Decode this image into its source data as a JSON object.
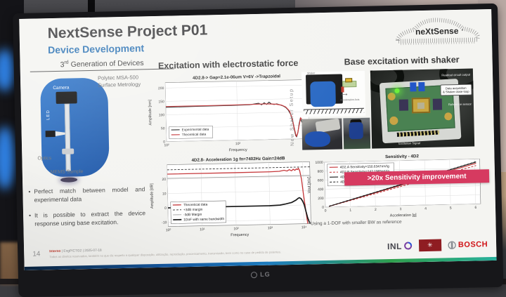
{
  "monitor": {
    "brand": "LG"
  },
  "colors": {
    "accent_blue": "#2e74b5",
    "device_blue": "#2b6fc4",
    "banner_pink": "#d63a60",
    "chart_red": "#c53538",
    "bosch_red": "#d01317",
    "uminho_red": "#8f1d22",
    "footer_gradient": [
      "#0a2440",
      "#1659a2",
      "#1e7fc2",
      "#2fa04e",
      "#28b09c"
    ]
  },
  "slide": {
    "title": "NextSense Project P01",
    "subtitle": "Device Development",
    "generation": {
      "num": "3",
      "sup": "rd",
      "rest": " Generation of Devices"
    },
    "logo_text": "neXtSense",
    "left": {
      "instrument": "Polytec MSA-500\nSurface Metrology",
      "labels": {
        "camera": "Camera",
        "led": "LED",
        "optics": "Optics",
        "sample": "MEMS Sample"
      },
      "bullets": [
        "Perfect match between model and experimental data",
        "It is possible to extract the device response using base excitation."
      ]
    },
    "center": {
      "heading": "Excitation with electrostatic force"
    },
    "right": {
      "heading": "Base excitation with shaker",
      "side_label": "New Shaker Setup",
      "photo_labels": {
        "shaker": "Shaker",
        "accel_axis": "Acceleration Axis",
        "readout": "Readout circuit output",
        "daq": "Data acquisition\n& Shaker close-loop",
        "ref_sensor": "Reference sensor",
        "excitation": "Excitation Signal"
      },
      "banner": ">20x Sensitivity improvement",
      "footnote": "*Using a 1-DOF with smaller BW as reference"
    },
    "footer": {
      "page": "14",
      "classification": "Interno",
      "meta": "| EngP/CTG2 | 2025-07-18",
      "disclaimer": "Todos os direitos reservados, também no que diz respeito a qualquer disposição, utilização, reprodução, processamento, transmissão, bem como no caso de pedido de patentes.",
      "logos": {
        "inl": "INL",
        "uminho_symbol": "✳",
        "bosch": "BOSCH"
      }
    }
  },
  "chart_data": [
    {
      "id": "freq-response",
      "type": "line",
      "title": "4D2.8-> Gap=2.1e-06um V=6V ->Trapzoidal",
      "xlabel": "Frequency",
      "ylabel": "Amplitude [nm]",
      "xscale": "log",
      "xlim": [
        100,
        10000
      ],
      "ylim": [
        0,
        220
      ],
      "xticks": [
        {
          "v": 100,
          "l": "10²"
        },
        {
          "v": 1000,
          "l": "10³"
        },
        {
          "v": 10000,
          "l": "10⁴"
        }
      ],
      "yticks": [
        {
          "v": 0,
          "l": "0"
        },
        {
          "v": 50,
          "l": "50"
        },
        {
          "v": 100,
          "l": "100"
        },
        {
          "v": 150,
          "l": "150"
        },
        {
          "v": 200,
          "l": "200"
        }
      ],
      "grid": true,
      "legend": {
        "pos": "bl"
      },
      "series": [
        {
          "name": "Experimental data",
          "color": "#222222",
          "lw": 1.1,
          "dash": false,
          "x": [
            100,
            300,
            800,
            1500,
            2000,
            2200,
            2400,
            2600,
            2800,
            3000,
            3300,
            3600,
            4000,
            4400,
            4800,
            5200,
            5600,
            6000,
            6300,
            6500,
            6700,
            7000,
            7300,
            7600,
            8000,
            8500,
            9000,
            10000
          ],
          "y": [
            128,
            129,
            130,
            131,
            136,
            130,
            137,
            131,
            139,
            133,
            130,
            132,
            128,
            124,
            118,
            108,
            92,
            60,
            30,
            12,
            8,
            25,
            55,
            75,
            62,
            45,
            38,
            33
          ]
        },
        {
          "name": "Theoretical data",
          "color": "#c53538",
          "lw": 1.2,
          "dash": false,
          "x": [
            100,
            500,
            1500,
            2500,
            3500,
            4200,
            4800,
            5400,
            5900,
            6300,
            6600,
            6900,
            7300,
            7700,
            8200,
            8800,
            9500,
            10000
          ],
          "y": [
            131,
            131,
            132,
            133,
            131,
            127,
            120,
            105,
            75,
            35,
            10,
            18,
            50,
            78,
            68,
            52,
            44,
            40
          ]
        }
      ]
    },
    {
      "id": "acceleration",
      "type": "line",
      "title": "4D2.8- Acceleration 1g fn=7402Hz Gain=24dB",
      "xlabel": "Frequency",
      "ylabel": "Amplitude [dB]",
      "xscale": "log",
      "xlim": [
        1,
        16000
      ],
      "ylim": [
        -13,
        30
      ],
      "xticks": [
        {
          "v": 1,
          "l": "10⁰"
        },
        {
          "v": 10,
          "l": "10¹"
        },
        {
          "v": 100,
          "l": "10²"
        },
        {
          "v": 1000,
          "l": "10³"
        },
        {
          "v": 10000,
          "l": "10⁴"
        }
      ],
      "yticks": [
        {
          "v": -10,
          "l": "-10"
        },
        {
          "v": 0,
          "l": "0"
        },
        {
          "v": 10,
          "l": "10"
        },
        {
          "v": 20,
          "l": "20"
        }
      ],
      "grid": true,
      "legend": {
        "pos": "bl"
      },
      "series": [
        {
          "name": "Theoretical data",
          "color": "#c53538",
          "lw": 1.3,
          "dash": false,
          "x": [
            1,
            100,
            1000,
            2000,
            2800,
            3400,
            4000,
            4600,
            5200,
            5800,
            6400,
            6900,
            7402,
            8000,
            9000,
            10000,
            11500,
            13000
          ],
          "y": [
            23.5,
            23.5,
            23.6,
            23.8,
            24.5,
            23.9,
            24.8,
            24.0,
            25.0,
            24.3,
            25.2,
            24.8,
            25.6,
            24.0,
            18,
            8,
            -4,
            -13
          ]
        },
        {
          "name": "+3dB margin",
          "color": "#333333",
          "lw": 0.9,
          "dash": true,
          "x": [
            1,
            16000
          ],
          "y": [
            26.5,
            26.5
          ]
        },
        {
          "name": "-3dB Margin",
          "color": "#9a9a9a",
          "lw": 0.8,
          "dash": false,
          "x": [
            1,
            16000
          ],
          "y": [
            20.5,
            20.5
          ]
        },
        {
          "name": "1DoF with same bandwidth",
          "color": "#1a1a1a",
          "lw": 1.7,
          "dash": false,
          "x": [
            1,
            1000,
            2000,
            3000,
            4500,
            6000,
            7000,
            7600,
            8500,
            9500,
            10500,
            11500,
            13000,
            15000
          ],
          "y": [
            0,
            0,
            0.3,
            1,
            2,
            3.5,
            4.8,
            5.2,
            4.5,
            2.5,
            0,
            -4,
            -9,
            -13
          ]
        }
      ]
    },
    {
      "id": "sensitivity",
      "type": "line",
      "title": "Sensitivity - 4D2",
      "xlabel": "Acceleration [g]",
      "ylabel": "Vout [mV]",
      "xscale": "linear",
      "xlim": [
        0,
        6.2
      ],
      "ylim": [
        0,
        1000
      ],
      "xticks": [
        {
          "v": 0,
          "l": "0"
        },
        {
          "v": 1,
          "l": "1"
        },
        {
          "v": 2,
          "l": "2"
        },
        {
          "v": 3,
          "l": "3"
        },
        {
          "v": 4,
          "l": "4"
        },
        {
          "v": 5,
          "l": "5"
        },
        {
          "v": 6,
          "l": "6"
        }
      ],
      "yticks": [
        {
          "v": 0,
          "l": "0"
        },
        {
          "v": 200,
          "l": "200"
        },
        {
          "v": 400,
          "l": "400"
        },
        {
          "v": 600,
          "l": "600"
        },
        {
          "v": 800,
          "l": "800"
        },
        {
          "v": 1000,
          "l": "1000"
        }
      ],
      "grid": true,
      "legend": {
        "pos": "tl"
      },
      "annotation": ">20x Sensitivity improvement",
      "series": [
        {
          "name": "4D2.A Sensitivity=150.6347mV/g",
          "color": "#c53538",
          "lw": 1.1,
          "dash": false,
          "x": [
            0.15,
            6.05
          ],
          "y": [
            15,
            905
          ]
        },
        {
          "name": "4D2.B Sensitivity=142.1965mV/g",
          "color": "#c53538",
          "lw": 1.0,
          "dash": true,
          "x": [
            0.15,
            6.05
          ],
          "y": [
            12,
            855
          ]
        },
        {
          "name": "4D2b.A Sensitivity=154.9862mV/g",
          "color": "#1a1a1a",
          "lw": 1.1,
          "dash": false,
          "x": [
            0.15,
            6.05
          ],
          "y": [
            15,
            935
          ]
        },
        {
          "name": "4D2b.B Sensitivity=156.1398mV/g",
          "color": "#1a1a1a",
          "lw": 1.0,
          "dash": true,
          "x": [
            0.15,
            6.05
          ],
          "y": [
            18,
            940
          ]
        }
      ]
    }
  ]
}
